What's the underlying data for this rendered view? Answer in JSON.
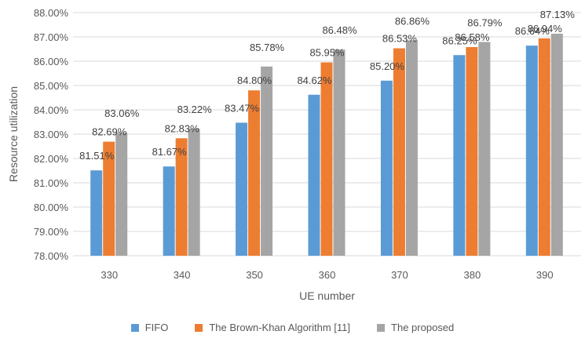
{
  "chart_data": {
    "type": "bar",
    "xlabel": "UE number",
    "ylabel": "Resource utilization",
    "categories": [
      "330",
      "340",
      "350",
      "360",
      "370",
      "380",
      "390"
    ],
    "ylim": [
      78,
      88
    ],
    "yticks": [
      "78.00%",
      "79.00%",
      "80.00%",
      "81.00%",
      "82.00%",
      "83.00%",
      "84.00%",
      "85.00%",
      "86.00%",
      "87.00%",
      "88.00%"
    ],
    "grid": true,
    "legend_position": "bottom",
    "series": [
      {
        "name": "FIFO",
        "color": "#5b9bd5",
        "values": [
          81.51,
          81.67,
          83.47,
          84.62,
          85.2,
          86.25,
          86.64
        ],
        "labels": [
          "81.51%",
          "81.67%",
          "83.47%",
          "84.62%",
          "85.20%",
          "86.25%",
          "86.64%"
        ]
      },
      {
        "name": "The Brown-Khan Algorithm [11]",
        "color": "#ed7d31",
        "values": [
          82.69,
          82.83,
          84.8,
          85.95,
          86.53,
          86.58,
          86.94
        ],
        "labels": [
          "82.69%",
          "82.83%",
          "84.80%",
          "85.95%",
          "86.53%",
          "86.58%",
          "86.94%"
        ]
      },
      {
        "name": "The proposed",
        "color": "#a5a5a5",
        "values": [
          83.06,
          83.22,
          85.78,
          86.48,
          86.86,
          86.79,
          87.13
        ],
        "labels": [
          "83.06%",
          "83.22%",
          "85.78%",
          "86.48%",
          "86.86%",
          "86.79%",
          "87.13%"
        ]
      }
    ]
  }
}
